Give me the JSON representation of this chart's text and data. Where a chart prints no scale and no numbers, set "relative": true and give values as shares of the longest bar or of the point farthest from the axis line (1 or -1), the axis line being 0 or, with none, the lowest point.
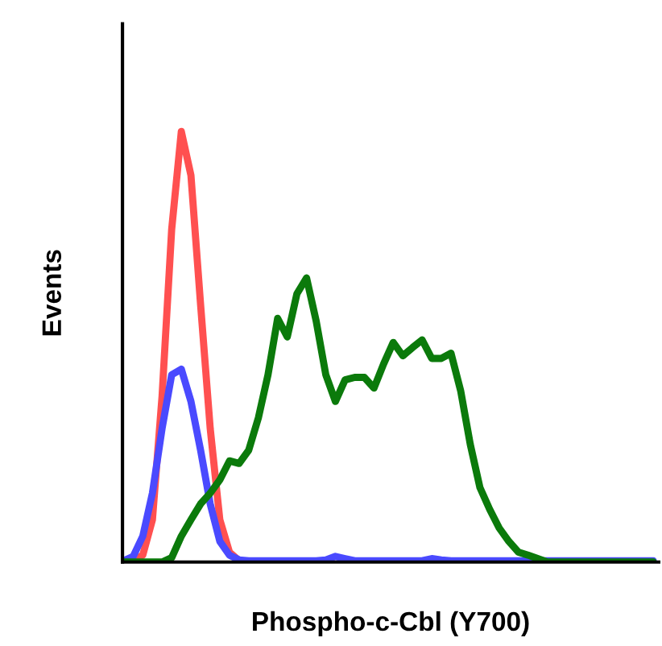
{
  "chart_data": {
    "type": "line",
    "xlabel": "Phospho-c-Cbl (Y700)",
    "ylabel": "Events",
    "relative": true,
    "legend": false,
    "marker": "none",
    "line_style": "solid",
    "categories": [
      null,
      null,
      null,
      null,
      null,
      null,
      null,
      null,
      null,
      null,
      null,
      null,
      null,
      null,
      null,
      null,
      null,
      null,
      null,
      null,
      null,
      null,
      null,
      null,
      null,
      null,
      null,
      null,
      null,
      null,
      null,
      null,
      null,
      null,
      null,
      null,
      null,
      null,
      null,
      null,
      null,
      null,
      null,
      null,
      null,
      null,
      null,
      null,
      null,
      null,
      null,
      null,
      null,
      null,
      null,
      null
    ],
    "series": [
      {
        "color": "#ff5050",
        "values": [
          null,
          0.003,
          0.016,
          0.098,
          0.385,
          0.773,
          1,
          0.898,
          0.598,
          0.31,
          0.098,
          0.023,
          0.003,
          null,
          null,
          null,
          null,
          null,
          null,
          null,
          null,
          null,
          null,
          null,
          null,
          null,
          null,
          null,
          null,
          null,
          null,
          null,
          null,
          null,
          null,
          null,
          null,
          null,
          null,
          null,
          null,
          null,
          null,
          null,
          null,
          null,
          null,
          null,
          null,
          null,
          null,
          null,
          null,
          null,
          null,
          null
        ]
      },
      {
        "color": "#4a4aff",
        "values": [
          0.003,
          0.013,
          0.06,
          0.16,
          0.31,
          0.435,
          0.448,
          0.373,
          0.26,
          0.135,
          0.048,
          0.016,
          0.005,
          0.003,
          0.003,
          0.003,
          0.003,
          0.003,
          0.003,
          0.003,
          0.003,
          0.005,
          0.013,
          0.008,
          0.003,
          0.003,
          0.003,
          0.003,
          0.003,
          0.003,
          0.003,
          0.003,
          0.008,
          0.005,
          0.003,
          0.003,
          0.003,
          0.003,
          0.003,
          0.003,
          0.003,
          0.003,
          0.003,
          0.003,
          0.003,
          0.003,
          0.003,
          0.003,
          0.003,
          0.003,
          0.003,
          0.003,
          0.003,
          0.003,
          0.003,
          0.003
        ]
      },
      {
        "color": "#0b7a0b",
        "values": [
          0,
          0,
          0,
          0,
          0,
          0.01,
          0.06,
          0.098,
          0.135,
          0.16,
          0.191,
          0.235,
          0.229,
          0.26,
          0.335,
          0.435,
          0.566,
          0.523,
          0.623,
          0.66,
          0.56,
          0.435,
          0.373,
          0.423,
          0.429,
          0.429,
          0.404,
          0.46,
          0.51,
          0.479,
          0.498,
          0.516,
          0.473,
          0.473,
          0.485,
          0.398,
          0.273,
          0.173,
          0.123,
          0.079,
          0.048,
          0.023,
          0.016,
          0.008,
          0,
          0,
          0,
          0,
          0,
          0,
          0,
          0,
          0,
          0,
          0,
          0
        ]
      }
    ]
  }
}
